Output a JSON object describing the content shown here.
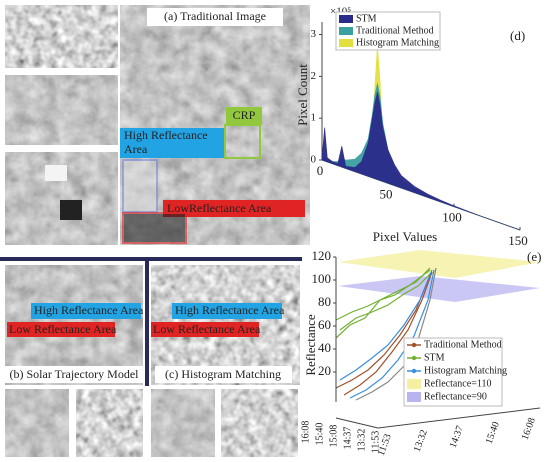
{
  "panels": {
    "a": "(a) Traditional Image",
    "b": "(b) Solar Trajectory Model",
    "c": "(c) Histogram Matching"
  },
  "annotations": {
    "crp": "CRP",
    "high_a_1": "High Reflectance",
    "high_a_2": "Area",
    "low_a": "LowReflectance Area",
    "high_b": "High Reflectance Area",
    "low_b": "Low Reflectance Area",
    "high_c": "High Reflectance Area",
    "low_c": "Low Reflectance Area"
  },
  "chart_data": [
    {
      "type": "area",
      "panel": "(d)",
      "scale_label": "×10⁵",
      "x_label": "Pixel Values",
      "y_label": "Pixel Count",
      "xlim": [
        0,
        150
      ],
      "xticks": [
        0,
        50,
        100,
        150
      ],
      "ylim": [
        0,
        3.3
      ],
      "yticks": [
        0,
        1,
        2,
        3
      ],
      "x": [
        0,
        2,
        4,
        8,
        12,
        15,
        18,
        25,
        30,
        35,
        38,
        40,
        42,
        44,
        46,
        50,
        55,
        60,
        70,
        80,
        90,
        100,
        120,
        150
      ],
      "series": [
        {
          "name": "STM",
          "color": "#2a2a8a",
          "values": [
            0.05,
            0.8,
            0.1,
            0.05,
            0.05,
            0.5,
            0.05,
            0.1,
            0.3,
            0.8,
            1.4,
            1.8,
            2.1,
            1.8,
            1.3,
            0.8,
            0.5,
            0.3,
            0.15,
            0.08,
            0.04,
            0.02,
            0,
            0
          ]
        },
        {
          "name": "Traditional Method",
          "color": "#3aa0a0",
          "values": [
            0,
            0.1,
            0.05,
            0.05,
            0.1,
            0.2,
            0.2,
            0.3,
            0.5,
            0.9,
            1.5,
            2.0,
            2.3,
            2.0,
            1.4,
            0.8,
            0.4,
            0.2,
            0.1,
            0.05,
            0.02,
            0,
            0,
            0
          ]
        },
        {
          "name": "Histogram Matching",
          "color": "#e2e040",
          "values": [
            0,
            0,
            0,
            0,
            0,
            0,
            0,
            0,
            0,
            0.2,
            0.8,
            2.2,
            3.2,
            2.4,
            1.0,
            0.3,
            0.1,
            0,
            0,
            0,
            0,
            0,
            0,
            0
          ]
        }
      ]
    },
    {
      "type": "line3d",
      "panel": "(e)",
      "y_label": "Reflectance",
      "ylim": [
        20,
        120
      ],
      "yticks": [
        20,
        40,
        60,
        80,
        100,
        120
      ],
      "categories": [
        "16:08",
        "15:40",
        "15:08",
        "14:37",
        "13:32",
        "11:53"
      ],
      "depth_categories": [
        "11:53",
        "13:32",
        "14:37",
        "15:40",
        "16:08"
      ],
      "legend": [
        {
          "name": "Traditional Method",
          "color": "#a0522d"
        },
        {
          "name": "STM",
          "color": "#70b030"
        },
        {
          "name": "Histogram Matching",
          "color": "#3a8ee0"
        },
        {
          "name": "Reflectance=110",
          "color": "#f4f0a0"
        },
        {
          "name": "Reflectance=90",
          "color": "#b8b4f0"
        }
      ]
    }
  ]
}
